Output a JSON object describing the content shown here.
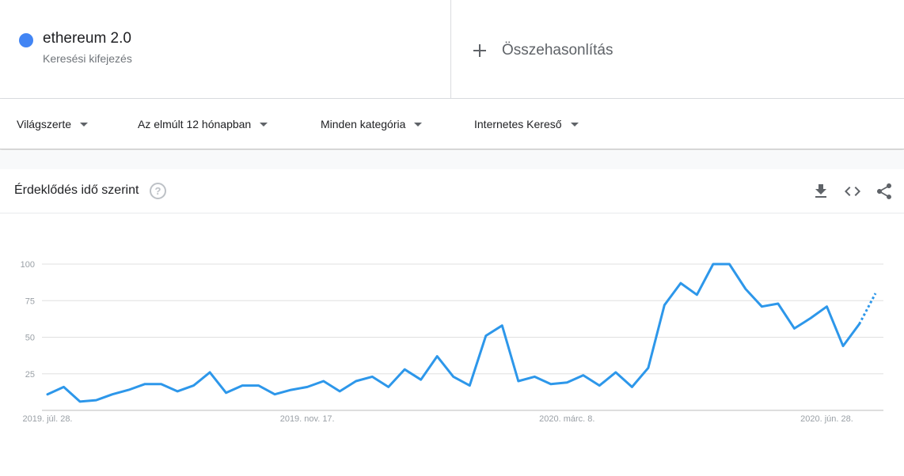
{
  "term": {
    "name": "ethereum 2.0",
    "type_label": "Keresési kifejezés",
    "color": "#4285f4"
  },
  "compare": {
    "label": "Összehasonlítás"
  },
  "filters": {
    "region": "Világszerte",
    "time": "Az elmúlt 12 hónapban",
    "category": "Minden kategória",
    "search_type": "Internetes Kereső"
  },
  "card": {
    "title": "Érdeklődés idő szerint",
    "icons": [
      "help-icon",
      "download-icon",
      "embed-icon",
      "share-icon"
    ]
  },
  "chart_data": {
    "type": "line",
    "title": "",
    "xlabel": "",
    "ylabel": "",
    "ylim": [
      0,
      100
    ],
    "yticks": [
      25,
      50,
      75,
      100
    ],
    "grid": true,
    "line_color": "#2d97ea",
    "x_tick_labels": [
      {
        "label": "2019. júl. 28.",
        "index": 0
      },
      {
        "label": "2019. nov. 17.",
        "index": 16
      },
      {
        "label": "2020. márc. 8.",
        "index": 32
      },
      {
        "label": "2020. jún. 28.",
        "index": 48
      }
    ],
    "series": [
      {
        "values": [
          11,
          16,
          6,
          7,
          11,
          14,
          18,
          18,
          13,
          17,
          26,
          12,
          17,
          17,
          11,
          14,
          16,
          20,
          13,
          20,
          23,
          16,
          28,
          21,
          37,
          23,
          17,
          51,
          58,
          20,
          23,
          18,
          19,
          24,
          17,
          26,
          16,
          29,
          72,
          87,
          79,
          100,
          100,
          83,
          71,
          73,
          56,
          63,
          71,
          44,
          59,
          80
        ],
        "partial_from_index": 50
      }
    ]
  }
}
